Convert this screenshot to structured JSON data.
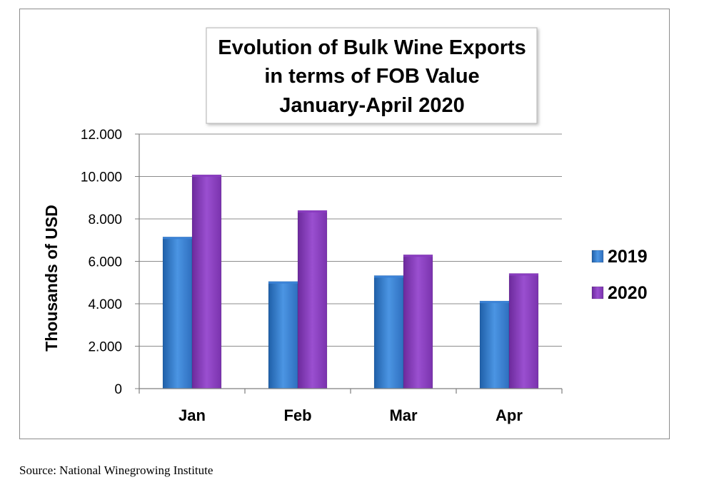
{
  "colors": {
    "series_2019": "#3b82d6",
    "series_2020": "#8a3cc0",
    "gridline": "#8c8c8c",
    "frame": "#8c8c8c"
  },
  "chart_data": {
    "type": "bar",
    "title_lines": [
      "Evolution of Bulk Wine Exports",
      "in terms of FOB Value",
      "January-April 2020"
    ],
    "xlabel": "",
    "ylabel": "Thousands of USD",
    "categories": [
      "Jan",
      "Feb",
      "Mar",
      "Apr"
    ],
    "series": [
      {
        "name": "2019",
        "values": [
          7150,
          5050,
          5330,
          4130
        ]
      },
      {
        "name": "2020",
        "values": [
          10080,
          8400,
          6310,
          5430
        ]
      }
    ],
    "ylim": [
      0,
      12000
    ],
    "yticks": [
      0,
      2000,
      4000,
      6000,
      8000,
      10000,
      12000
    ],
    "ytick_labels": [
      "0",
      "2.000",
      "4.000",
      "6.000",
      "8.000",
      "10.000",
      "12.000"
    ],
    "grid": true,
    "legend_position": "right"
  },
  "source_note": "Source: National Winegrowing Institute"
}
